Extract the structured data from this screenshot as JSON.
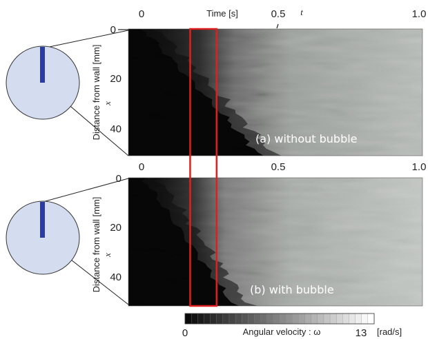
{
  "chart_data": {
    "type": "heatmap",
    "x_axis": {
      "label": "Time [s]",
      "variable": "t",
      "ticks": [
        "0",
        "0.5",
        "1.0"
      ],
      "tick_values": [
        0,
        0.5,
        1.0
      ],
      "range": [
        0,
        1.0
      ]
    },
    "y_axis": {
      "label": "Distance from wall [mm]",
      "variable": "x",
      "ticks": [
        "0",
        "20",
        "40"
      ],
      "tick_values": [
        0,
        20,
        40
      ],
      "range": [
        0,
        50
      ],
      "inverted": true
    },
    "panels": [
      {
        "label": "(a) without bubble",
        "front_start_s": 0.05,
        "front_end_s": 0.45
      },
      {
        "label": "(b) with bubble",
        "front_start_s": 0.05,
        "front_end_s": 0.36
      }
    ],
    "highlight": {
      "color": "#e02020",
      "t_range": [
        0.21,
        0.3
      ]
    },
    "colorbar": {
      "label": "Angular velocity : ω",
      "min_label": "0",
      "max_label": "13",
      "unit": "[rad/s]",
      "min": 0,
      "max": 13
    },
    "schematic": {
      "fill": "#d4dcf0",
      "bar_color": "#2a3ea0"
    }
  }
}
